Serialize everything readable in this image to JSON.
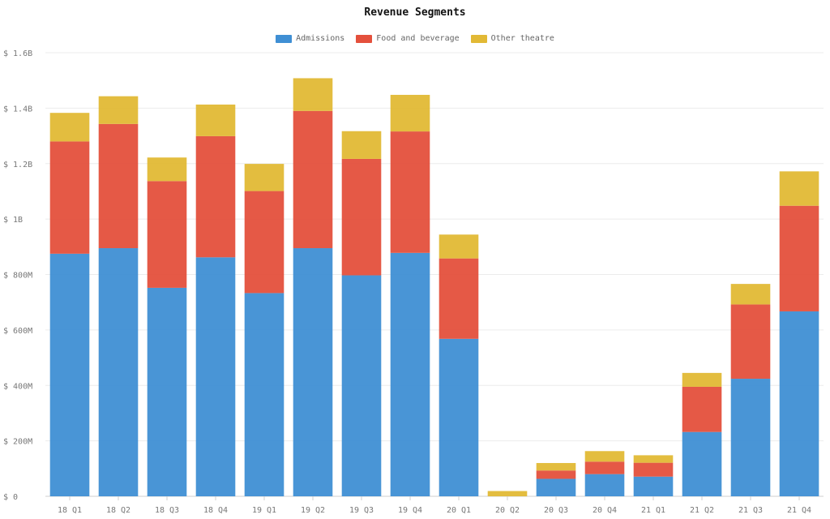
{
  "chart_data": {
    "type": "bar",
    "stacked": true,
    "title": "Revenue Segments",
    "categories": [
      "18 Q1",
      "18 Q2",
      "18 Q3",
      "18 Q4",
      "19 Q1",
      "19 Q2",
      "19 Q3",
      "19 Q4",
      "20 Q1",
      "20 Q2",
      "20 Q3",
      "20 Q4",
      "21 Q1",
      "21 Q2",
      "21 Q3",
      "21 Q4"
    ],
    "series": [
      {
        "name": "Admissions",
        "color": "#3f8fd4",
        "values": [
          875,
          895,
          752,
          862,
          733,
          895,
          797,
          878,
          568,
          0,
          63,
          80,
          71,
          232,
          424,
          667
        ]
      },
      {
        "name": "Food and beverage",
        "color": "#e4503c",
        "values": [
          405,
          448,
          385,
          437,
          368,
          495,
          420,
          438,
          290,
          0,
          30,
          45,
          50,
          163,
          268,
          381
        ]
      },
      {
        "name": "Other theatre",
        "color": "#e2b935",
        "values": [
          103,
          100,
          85,
          114,
          98,
          118,
          100,
          132,
          86,
          19,
          27,
          38,
          27,
          50,
          74,
          124
        ]
      }
    ],
    "ylim": [
      0,
      1600
    ],
    "y_ticks": [
      {
        "value": 0,
        "label": "$ 0"
      },
      {
        "value": 200,
        "label": "$ 200M"
      },
      {
        "value": 400,
        "label": "$ 400M"
      },
      {
        "value": 600,
        "label": "$ 600M"
      },
      {
        "value": 800,
        "label": "$ 800M"
      },
      {
        "value": 1000,
        "label": "$ 1B"
      },
      {
        "value": 1200,
        "label": "$ 1.2B"
      },
      {
        "value": 1400,
        "label": "$ 1.4B"
      },
      {
        "value": 1600,
        "label": "$ 1.6B"
      }
    ],
    "legend_position": "top",
    "grid": true
  }
}
